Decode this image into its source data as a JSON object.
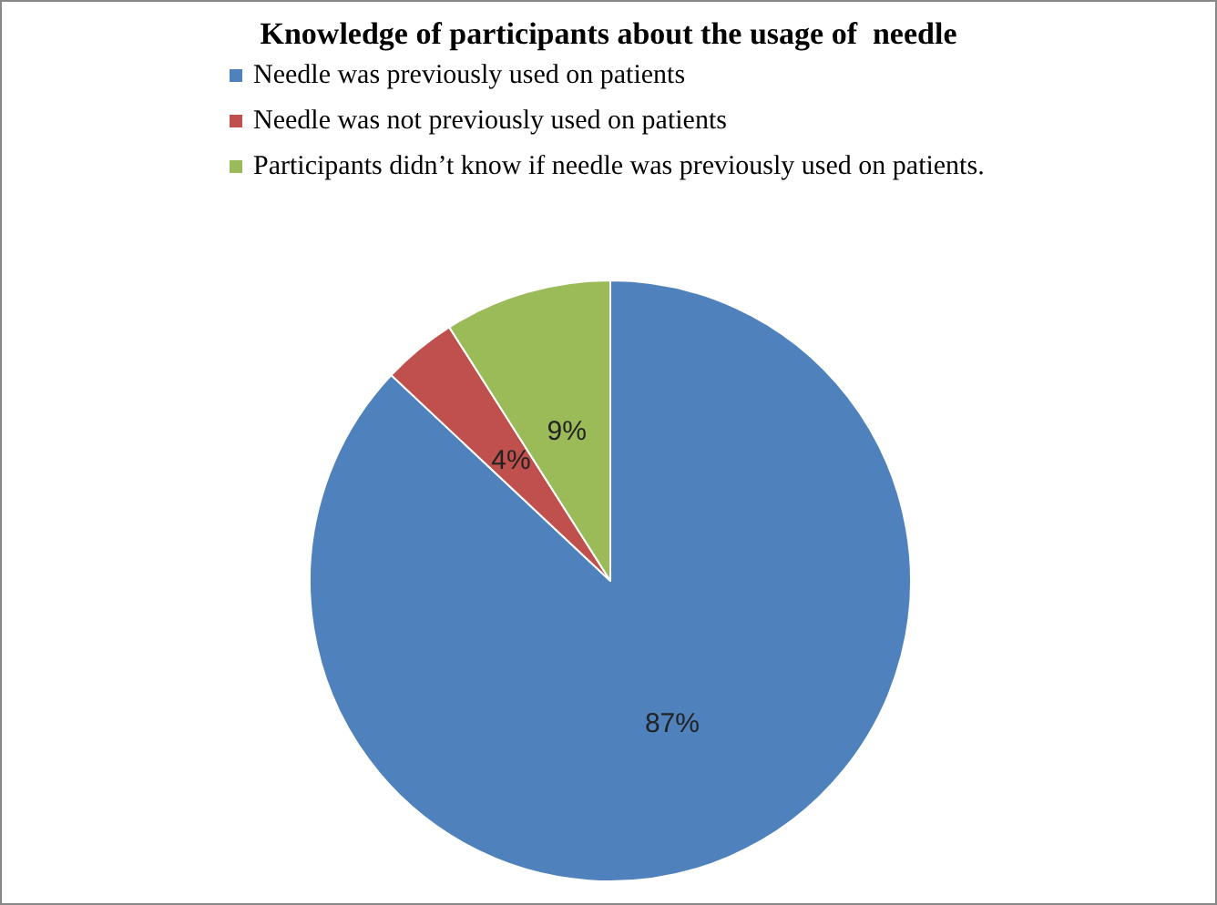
{
  "chart_data": {
    "type": "pie",
    "title": "Knowledge of participants about the usage of  needle",
    "categories": [
      "Needle was previously used on patients",
      "Needle was not previously used on patients",
      "Participants didn’t know if needle was previously used on patients."
    ],
    "values": [
      87,
      4,
      9
    ],
    "colors": [
      "#4f81bd",
      "#c0504d",
      "#9bbb59"
    ],
    "value_labels": [
      "87%",
      "4%",
      "9%"
    ],
    "legend": "top"
  }
}
